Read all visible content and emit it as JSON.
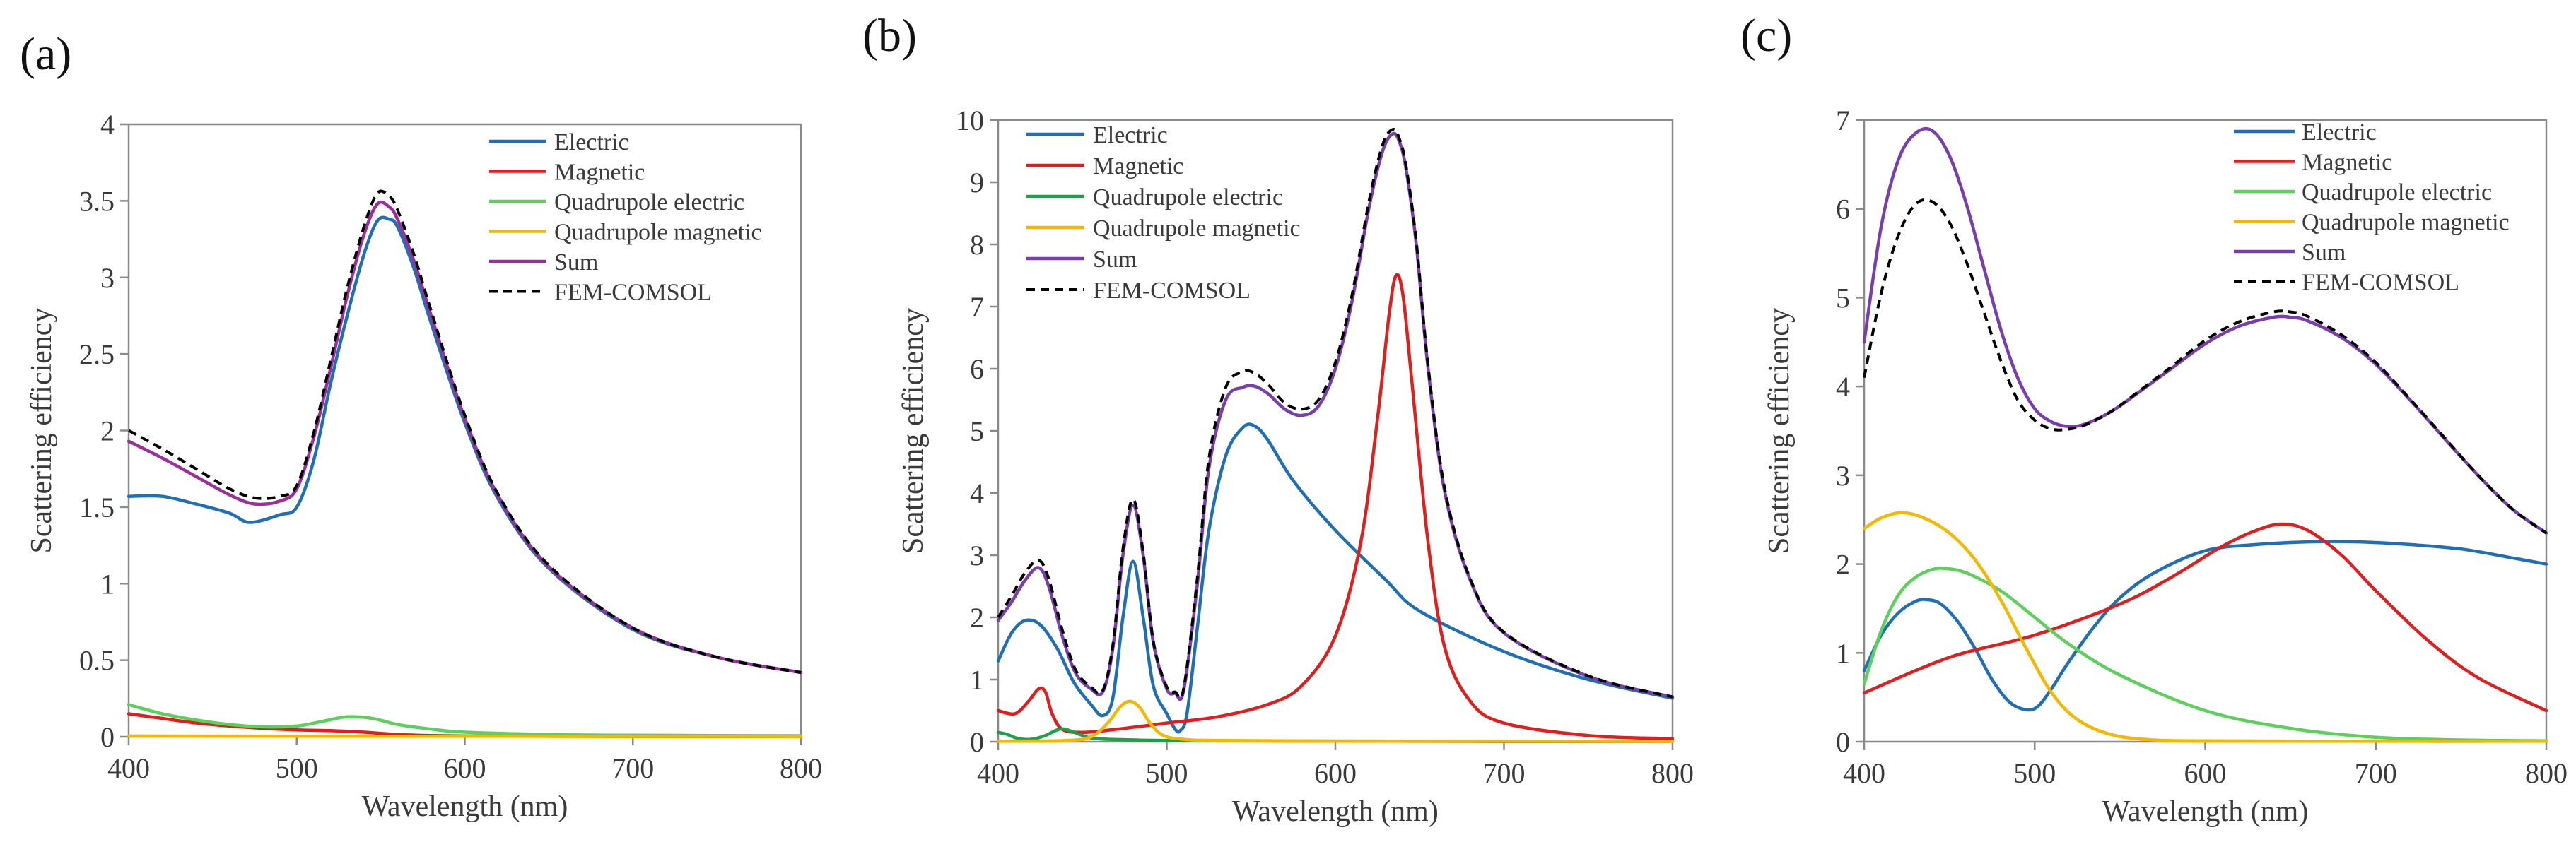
{
  "chart_data": [
    {
      "panel_label": "(a)",
      "type": "line",
      "xlabel": "Wavelength (nm)",
      "ylabel": "Scattering efficiency",
      "xlim": [
        400,
        800
      ],
      "ylim": [
        0,
        4
      ],
      "xticks": [
        400,
        500,
        600,
        700,
        800
      ],
      "yticks": [
        0,
        0.5,
        1,
        1.5,
        2,
        2.5,
        3,
        3.5,
        4
      ],
      "ytick_labels": [
        "0",
        "0.5",
        "1",
        "1.5",
        "2",
        "2.5",
        "3",
        "3.5",
        "4"
      ],
      "legend_position": "top-right",
      "grid": false,
      "series": [
        {
          "name": "Electric",
          "color": "#1f6fb7",
          "dashed": false,
          "x": [
            400,
            420,
            440,
            460,
            472,
            490,
            500,
            510,
            520,
            530,
            540,
            548,
            555,
            560,
            570,
            580,
            600,
            620,
            650,
            700,
            750,
            800
          ],
          "y": [
            1.57,
            1.57,
            1.52,
            1.46,
            1.4,
            1.45,
            1.5,
            1.8,
            2.3,
            2.75,
            3.15,
            3.37,
            3.38,
            3.33,
            3.05,
            2.7,
            2.05,
            1.55,
            1.1,
            0.7,
            0.52,
            0.42
          ]
        },
        {
          "name": "Magnetic",
          "color": "#e01e1e",
          "dashed": false,
          "x": [
            400,
            420,
            440,
            460,
            480,
            500,
            520,
            540,
            560,
            580,
            600,
            650,
            700,
            750,
            800
          ],
          "y": [
            0.15,
            0.12,
            0.09,
            0.07,
            0.055,
            0.045,
            0.04,
            0.03,
            0.015,
            0.008,
            0.005,
            0.003,
            0.002,
            0.001,
            0.001
          ]
        },
        {
          "name": "Quadrupole electric",
          "color": "#5bd15b",
          "dashed": false,
          "x": [
            400,
            420,
            440,
            460,
            480,
            500,
            515,
            530,
            545,
            560,
            580,
            600,
            650,
            700,
            750,
            800
          ],
          "y": [
            0.21,
            0.15,
            0.11,
            0.08,
            0.065,
            0.07,
            0.1,
            0.13,
            0.12,
            0.08,
            0.05,
            0.03,
            0.015,
            0.01,
            0.008,
            0.007
          ]
        },
        {
          "name": "Quadrupole magnetic",
          "color": "#f5b800",
          "dashed": false,
          "x": [
            400,
            500,
            600,
            700,
            800
          ],
          "y": [
            0.005,
            0.004,
            0.003,
            0.002,
            0.001
          ]
        },
        {
          "name": "Sum",
          "color": "#9c2f9c",
          "dashed": false,
          "x": [
            400,
            420,
            440,
            460,
            475,
            490,
            500,
            510,
            520,
            530,
            540,
            548,
            555,
            560,
            570,
            580,
            600,
            620,
            650,
            700,
            750,
            800
          ],
          "y": [
            1.93,
            1.82,
            1.7,
            1.58,
            1.52,
            1.54,
            1.62,
            1.95,
            2.4,
            2.88,
            3.28,
            3.48,
            3.46,
            3.38,
            3.1,
            2.75,
            2.08,
            1.57,
            1.11,
            0.71,
            0.52,
            0.42
          ]
        },
        {
          "name": "FEM-COMSOL",
          "color": "#000000",
          "dashed": true,
          "x": [
            400,
            420,
            440,
            460,
            475,
            490,
            500,
            510,
            520,
            530,
            540,
            548,
            555,
            560,
            570,
            580,
            600,
            620,
            650,
            700,
            750,
            800
          ],
          "y": [
            2.0,
            1.88,
            1.75,
            1.62,
            1.56,
            1.57,
            1.64,
            1.98,
            2.45,
            2.93,
            3.33,
            3.55,
            3.53,
            3.44,
            3.14,
            2.78,
            2.1,
            1.58,
            1.12,
            0.71,
            0.52,
            0.42
          ]
        }
      ]
    },
    {
      "panel_label": "(b)",
      "type": "line",
      "xlabel": "Wavelength (nm)",
      "ylabel": "Scattering efficiency",
      "xlim": [
        400,
        800
      ],
      "ylim": [
        0,
        10
      ],
      "xticks": [
        400,
        500,
        600,
        700,
        800
      ],
      "yticks": [
        0,
        1,
        2,
        3,
        4,
        5,
        6,
        7,
        8,
        9,
        10
      ],
      "ytick_labels": [
        "0",
        "1",
        "2",
        "3",
        "4",
        "5",
        "6",
        "7",
        "8",
        "9",
        "10"
      ],
      "legend_position": "top-left",
      "grid": false,
      "series": [
        {
          "name": "Electric",
          "color": "#1f6fb7",
          "dashed": false,
          "x": [
            400,
            408,
            416,
            425,
            435,
            445,
            455,
            462,
            468,
            474,
            480,
            486,
            492,
            500,
            505,
            508,
            512,
            518,
            525,
            535,
            545,
            552,
            560,
            575,
            600,
            630,
            650,
            700,
            750,
            800
          ],
          "y": [
            1.3,
            1.75,
            1.95,
            1.88,
            1.5,
            0.95,
            0.6,
            0.42,
            0.7,
            2.0,
            2.9,
            2.0,
            0.9,
            0.45,
            0.2,
            0.18,
            0.45,
            1.8,
            3.4,
            4.6,
            5.05,
            5.08,
            4.85,
            4.2,
            3.4,
            2.6,
            2.1,
            1.45,
            1.0,
            0.7
          ]
        },
        {
          "name": "Magnetic",
          "color": "#e01e1e",
          "dashed": false,
          "x": [
            400,
            410,
            418,
            424,
            428,
            432,
            438,
            450,
            470,
            500,
            530,
            560,
            580,
            600,
            615,
            625,
            632,
            636,
            640,
            645,
            655,
            665,
            680,
            700,
            750,
            800
          ],
          "y": [
            0.5,
            0.45,
            0.65,
            0.85,
            0.8,
            0.45,
            0.2,
            0.15,
            0.2,
            0.3,
            0.4,
            0.6,
            0.9,
            1.7,
            3.2,
            5.2,
            6.9,
            7.5,
            7.2,
            5.9,
            3.2,
            1.5,
            0.65,
            0.3,
            0.1,
            0.05
          ]
        },
        {
          "name": "Quadrupole electric",
          "color": "#1ea04a",
          "dashed": false,
          "x": [
            400,
            405,
            412,
            420,
            428,
            435,
            440,
            448,
            455,
            465,
            480,
            500,
            600,
            700,
            800
          ],
          "y": [
            0.15,
            0.12,
            0.05,
            0.04,
            0.1,
            0.19,
            0.2,
            0.12,
            0.06,
            0.04,
            0.03,
            0.02,
            0.01,
            0.005,
            0.005
          ]
        },
        {
          "name": "Quadrupole magnetic",
          "color": "#f5b800",
          "dashed": false,
          "x": [
            400,
            440,
            455,
            465,
            472,
            478,
            484,
            490,
            498,
            510,
            530,
            600,
            700,
            800
          ],
          "y": [
            0.01,
            0.02,
            0.08,
            0.3,
            0.55,
            0.65,
            0.55,
            0.3,
            0.1,
            0.04,
            0.02,
            0.01,
            0.01,
            0.005
          ]
        },
        {
          "name": "Sum",
          "color": "#7a3db0",
          "dashed": false,
          "x": [
            400,
            408,
            416,
            424,
            430,
            438,
            446,
            455,
            462,
            468,
            474,
            480,
            486,
            492,
            500,
            505,
            510,
            518,
            525,
            535,
            545,
            552,
            560,
            570,
            580,
            590,
            600,
            610,
            620,
            628,
            634,
            638,
            642,
            648,
            655,
            665,
            680,
            700,
            750,
            800
          ],
          "y": [
            1.95,
            2.25,
            2.6,
            2.8,
            2.5,
            1.7,
            1.1,
            0.85,
            0.8,
            1.5,
            3.0,
            3.8,
            3.0,
            1.6,
            0.85,
            0.78,
            0.82,
            2.5,
            4.4,
            5.5,
            5.7,
            5.72,
            5.6,
            5.35,
            5.25,
            5.4,
            6.0,
            7.1,
            8.6,
            9.5,
            9.78,
            9.65,
            9.2,
            8.0,
            6.0,
            4.0,
            2.6,
            1.75,
            1.05,
            0.72
          ]
        },
        {
          "name": "FEM-COMSOL",
          "color": "#000000",
          "dashed": true,
          "x": [
            400,
            408,
            416,
            424,
            430,
            438,
            446,
            455,
            462,
            468,
            474,
            480,
            486,
            492,
            500,
            505,
            510,
            518,
            525,
            535,
            545,
            552,
            560,
            570,
            580,
            590,
            600,
            610,
            620,
            628,
            634,
            638,
            642,
            648,
            655,
            665,
            680,
            700,
            750,
            800
          ],
          "y": [
            2.0,
            2.35,
            2.72,
            2.92,
            2.62,
            1.8,
            1.15,
            0.88,
            0.82,
            1.55,
            3.1,
            3.9,
            3.05,
            1.62,
            0.88,
            0.8,
            0.85,
            2.6,
            4.55,
            5.7,
            5.95,
            5.93,
            5.75,
            5.45,
            5.35,
            5.5,
            6.1,
            7.2,
            8.7,
            9.6,
            9.85,
            9.7,
            9.25,
            8.05,
            6.05,
            4.05,
            2.62,
            1.76,
            1.06,
            0.72
          ]
        }
      ]
    },
    {
      "panel_label": "(c)",
      "type": "line",
      "xlabel": "Wavelength (nm)",
      "ylabel": "Scattering efficiency",
      "xlim": [
        400,
        800
      ],
      "ylim": [
        0,
        7
      ],
      "xticks": [
        400,
        500,
        600,
        700,
        800
      ],
      "yticks": [
        0,
        1,
        2,
        3,
        4,
        5,
        6,
        7
      ],
      "ytick_labels": [
        "0",
        "1",
        "2",
        "3",
        "4",
        "5",
        "6",
        "7"
      ],
      "legend_position": "top-right",
      "grid": false,
      "series": [
        {
          "name": "Electric",
          "color": "#1f6fb7",
          "dashed": false,
          "x": [
            400,
            410,
            420,
            430,
            437,
            445,
            455,
            465,
            475,
            485,
            495,
            502,
            510,
            520,
            535,
            550,
            570,
            600,
            630,
            660,
            690,
            720,
            750,
            780,
            800
          ],
          "y": [
            0.8,
            1.2,
            1.45,
            1.58,
            1.6,
            1.55,
            1.35,
            1.05,
            0.7,
            0.45,
            0.36,
            0.4,
            0.6,
            0.9,
            1.3,
            1.62,
            1.9,
            2.15,
            2.22,
            2.25,
            2.25,
            2.22,
            2.17,
            2.07,
            2.0
          ]
        },
        {
          "name": "Magnetic",
          "color": "#e01e1e",
          "dashed": false,
          "x": [
            400,
            450,
            500,
            550,
            580,
            610,
            630,
            645,
            660,
            680,
            700,
            730,
            760,
            800
          ],
          "y": [
            0.55,
            0.95,
            1.2,
            1.55,
            1.85,
            2.2,
            2.38,
            2.45,
            2.38,
            2.1,
            1.7,
            1.15,
            0.72,
            0.35
          ]
        },
        {
          "name": "Quadrupole electric",
          "color": "#5bd15b",
          "dashed": false,
          "x": [
            400,
            410,
            420,
            430,
            440,
            448,
            460,
            480,
            500,
            520,
            550,
            600,
            650,
            700,
            750,
            800
          ],
          "y": [
            0.65,
            1.25,
            1.65,
            1.85,
            1.94,
            1.95,
            1.9,
            1.7,
            1.4,
            1.1,
            0.75,
            0.35,
            0.15,
            0.05,
            0.02,
            0.01
          ]
        },
        {
          "name": "Quadrupole magnetic",
          "color": "#f5b800",
          "dashed": false,
          "x": [
            400,
            410,
            422,
            435,
            450,
            465,
            480,
            495,
            510,
            525,
            545,
            570,
            600,
            700,
            800
          ],
          "y": [
            2.4,
            2.52,
            2.58,
            2.52,
            2.35,
            2.05,
            1.6,
            1.05,
            0.55,
            0.25,
            0.08,
            0.02,
            0.01,
            0.005,
            0.005
          ]
        },
        {
          "name": "Sum",
          "color": "#7a3db0",
          "dashed": false,
          "x": [
            400,
            410,
            420,
            430,
            440,
            450,
            460,
            470,
            480,
            490,
            500,
            510,
            520,
            530,
            545,
            560,
            580,
            600,
            620,
            640,
            650,
            660,
            680,
            700,
            720,
            740,
            760,
            780,
            800
          ],
          "y": [
            4.5,
            5.8,
            6.55,
            6.85,
            6.88,
            6.6,
            6.05,
            5.35,
            4.65,
            4.1,
            3.75,
            3.6,
            3.55,
            3.58,
            3.72,
            3.92,
            4.2,
            4.48,
            4.68,
            4.78,
            4.78,
            4.74,
            4.55,
            4.25,
            3.85,
            3.42,
            3.0,
            2.62,
            2.35
          ]
        },
        {
          "name": "FEM-COMSOL",
          "color": "#000000",
          "dashed": true,
          "x": [
            400,
            410,
            420,
            430,
            440,
            450,
            460,
            470,
            480,
            490,
            500,
            510,
            520,
            530,
            545,
            560,
            580,
            600,
            620,
            640,
            650,
            660,
            680,
            700,
            720,
            740,
            760,
            780,
            800
          ],
          "y": [
            4.1,
            5.05,
            5.7,
            6.05,
            6.08,
            5.85,
            5.4,
            4.85,
            4.3,
            3.85,
            3.62,
            3.52,
            3.52,
            3.57,
            3.72,
            3.93,
            4.22,
            4.52,
            4.73,
            4.84,
            4.84,
            4.79,
            4.58,
            4.27,
            3.86,
            3.43,
            3.0,
            2.62,
            2.35
          ]
        }
      ]
    }
  ]
}
